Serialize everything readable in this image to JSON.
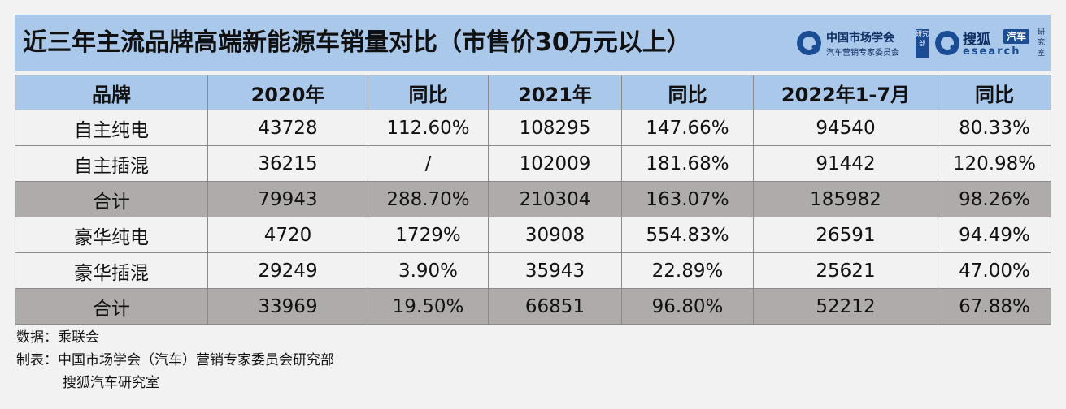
{
  "header": {
    "title": "近三年主流品牌高端新能源车销量对比（市售价30万元以上）",
    "logo1": {
      "name": "中国市场学会",
      "tag": "研究部",
      "sub": "汽车营销专家委员会"
    },
    "logo2": {
      "name": "搜狐",
      "chip": "汽车",
      "sub": "esearch",
      "side": "研究室"
    }
  },
  "table": {
    "columns": [
      "品牌",
      "2020年",
      "同比",
      "2021年",
      "同比",
      "2022年1-7月",
      "同比"
    ],
    "rows": [
      {
        "brand": "自主纯电",
        "y2020": "43728",
        "yoy2020": "112.60%",
        "y2021": "108295",
        "yoy2021": "147.66%",
        "y2022": "94540",
        "yoy2022": "80.33%",
        "total": false
      },
      {
        "brand": "自主插混",
        "y2020": "36215",
        "yoy2020": "/",
        "y2021": "102009",
        "yoy2021": "181.68%",
        "y2022": "91442",
        "yoy2022": "120.98%",
        "total": false
      },
      {
        "brand": "合计",
        "y2020": "79943",
        "yoy2020": "288.70%",
        "y2021": "210304",
        "yoy2021": "163.07%",
        "y2022": "185982",
        "yoy2022": "98.26%",
        "total": true
      },
      {
        "brand": "豪华纯电",
        "y2020": "4720",
        "yoy2020": "1729%",
        "y2021": "30908",
        "yoy2021": "554.83%",
        "y2022": "26591",
        "yoy2022": "94.49%",
        "total": false
      },
      {
        "brand": "豪华插混",
        "y2020": "29249",
        "yoy2020": "3.90%",
        "y2021": "35943",
        "yoy2021": "22.89%",
        "y2022": "25621",
        "yoy2022": "47.00%",
        "total": false
      },
      {
        "brand": "合计",
        "y2020": "33969",
        "yoy2020": "19.50%",
        "y2021": "66851",
        "yoy2021": "96.80%",
        "y2022": "52212",
        "yoy2022": "67.88%",
        "total": true
      }
    ]
  },
  "notes": {
    "source": "数据：乘联会",
    "maker_line1": "制表：中国市场学会（汽车）营销专家委员会研究部",
    "maker_line2": "搜狐汽车研究室"
  },
  "colors": {
    "header_bg": "#a9c8ea",
    "total_row_bg": "#afabab",
    "page_bg": "#f2f2f2",
    "logo_blue": "#1b4d94"
  }
}
